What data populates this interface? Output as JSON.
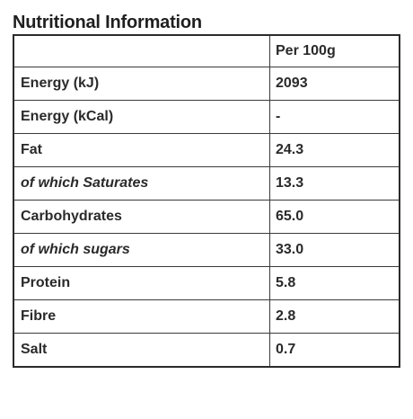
{
  "title": "Nutritional Information",
  "table": {
    "header": {
      "label": "",
      "value": "Per 100g"
    },
    "rows": [
      {
        "label": "Energy (kJ)",
        "value": "2093",
        "italic": false
      },
      {
        "label": "Energy (kCal)",
        "value": "-",
        "italic": false
      },
      {
        "label": "Fat",
        "value": "24.3",
        "italic": false
      },
      {
        "label": "of which Saturates",
        "value": "13.3",
        "italic": true
      },
      {
        "label": "Carbohydrates",
        "value": "65.0",
        "italic": false
      },
      {
        "label": "of which sugars",
        "value": "33.0",
        "italic": true
      },
      {
        "label": "Protein",
        "value": "5.8",
        "italic": false
      },
      {
        "label": "Fibre",
        "value": "2.8",
        "italic": false
      },
      {
        "label": "Salt",
        "value": "0.7",
        "italic": false
      }
    ]
  }
}
